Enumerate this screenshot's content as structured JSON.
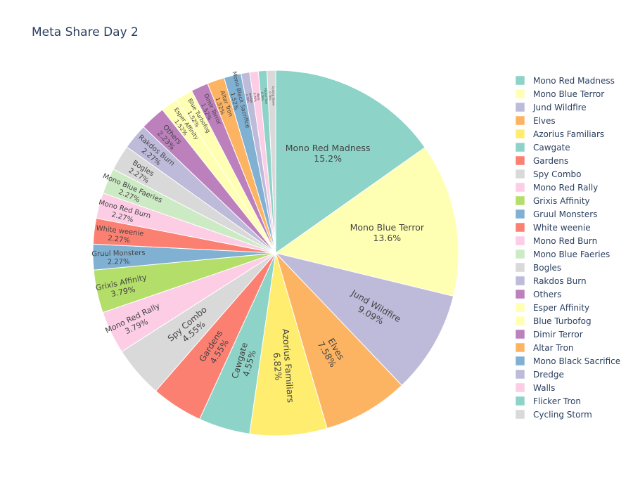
{
  "chart_data": {
    "type": "pie",
    "title": "Meta Share Day 2",
    "categories": [
      "Mono Red Madness",
      "Mono Blue Terror",
      "Jund Wildfire",
      "Elves",
      "Azorius Familiars",
      "Cawgate",
      "Gardens",
      "Spy Combo",
      "Mono Red Rally",
      "Grixis Affinity",
      "Gruul Monsters",
      "White weenie",
      "Mono Red Burn",
      "Mono Blue Faeries",
      "Bogles",
      "Rakdos Burn",
      "Others",
      "Esper Affinity",
      "Blue Turbofog",
      "Dimir Terror",
      "Altar Tron",
      "Mono Black Sacrifice",
      "Dredge",
      "Walls",
      "Flicker Tron",
      "Cycling Storm"
    ],
    "values": [
      15.2,
      13.6,
      9.09,
      7.58,
      6.82,
      4.55,
      4.55,
      4.55,
      3.79,
      3.79,
      2.27,
      2.27,
      2.27,
      2.27,
      2.27,
      2.27,
      2.23,
      1.52,
      1.52,
      1.52,
      1.52,
      1.52,
      0.76,
      0.76,
      0.76,
      0.76
    ],
    "labels_pct": [
      "15.2%",
      "13.6%",
      "9.09%",
      "7.58%",
      "6.82%",
      "4.55%",
      "4.55%",
      "4.55%",
      "3.79%",
      "3.79%",
      "2.27%",
      "2.27%",
      "2.27%",
      "2.27%",
      "2.27%",
      "2.27%",
      "2.23%",
      "1.52%",
      "1.52%",
      "1.52%",
      "1.52%",
      "1.52%",
      "0.76%",
      "0.76%",
      "0.76%",
      "0.76%"
    ],
    "colors": [
      "#8dd3c7",
      "#ffffb3",
      "#bebada",
      "#fdb462",
      "#ffed6f",
      "#8dd3c7",
      "#fb8072",
      "#d9d9d9",
      "#fccde5",
      "#b3de69",
      "#80b1d3",
      "#fb8072",
      "#fccde5",
      "#ccebc5",
      "#d9d9d9",
      "#bebada",
      "#bc80bd",
      "#ffffb3",
      "#ffffb3",
      "#bc80bd",
      "#fdb462",
      "#80b1d3",
      "#bebada",
      "#fccde5",
      "#8dd3c7",
      "#d9d9d9"
    ],
    "legend_position": "right",
    "direction": "clockwise",
    "start": "top"
  }
}
